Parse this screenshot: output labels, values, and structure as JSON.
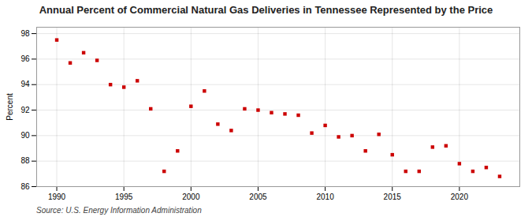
{
  "chart_data": {
    "type": "scatter",
    "title": "Annual Percent of Commercial Natural Gas Deliveries in Tennessee Represented by the Price",
    "ylabel": "Percent",
    "source": "Source: U.S. Energy Information Administration",
    "x": [
      1990,
      1991,
      1992,
      1993,
      1994,
      1995,
      1996,
      1997,
      1998,
      1999,
      2000,
      2001,
      2002,
      2003,
      2004,
      2005,
      2006,
      2007,
      2008,
      2009,
      2010,
      2011,
      2012,
      2013,
      2014,
      2015,
      2016,
      2017,
      2018,
      2019,
      2020,
      2021,
      2022,
      2023
    ],
    "values": [
      97.5,
      95.7,
      96.5,
      95.9,
      94.0,
      93.8,
      94.3,
      92.1,
      87.2,
      88.8,
      92.3,
      93.5,
      90.9,
      90.4,
      92.1,
      92.0,
      91.8,
      91.7,
      91.6,
      90.2,
      90.8,
      89.9,
      90.0,
      88.8,
      90.1,
      88.5,
      87.2,
      87.2,
      89.1,
      89.2,
      87.8,
      87.2,
      87.5,
      86.8
    ],
    "color": "#cc0000",
    "marker": "square",
    "xlim": [
      1988.5,
      2024.5
    ],
    "xticks": [
      1990,
      1995,
      2000,
      2005,
      2010,
      2015,
      2020
    ],
    "ylim": [
      86,
      98.5
    ],
    "yticks": [
      86,
      88,
      90,
      92,
      94,
      96,
      98
    ],
    "grid": true
  }
}
